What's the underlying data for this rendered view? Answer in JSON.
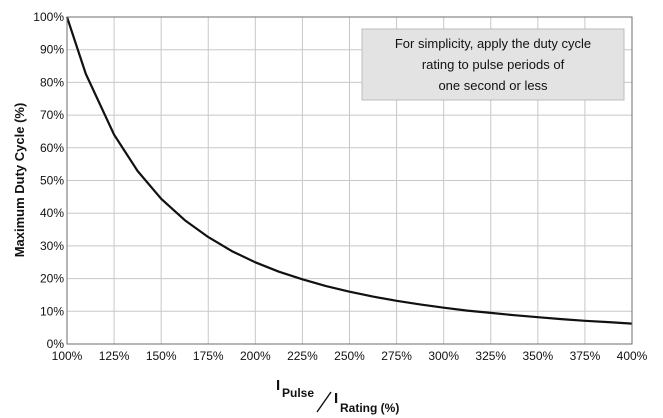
{
  "chart_data": {
    "type": "line",
    "x_tick_labels": [
      "100%",
      "125%",
      "150%",
      "175%",
      "200%",
      "225%",
      "250%",
      "275%",
      "300%",
      "325%",
      "350%",
      "375%",
      "400%"
    ],
    "y_tick_labels": [
      "0%",
      "10%",
      "20%",
      "30%",
      "40%",
      "50%",
      "60%",
      "70%",
      "80%",
      "90%",
      "100%"
    ],
    "xlim": [
      100,
      400
    ],
    "ylim": [
      0,
      100
    ],
    "grid": true,
    "ylabel": "Maximum Duty Cycle (%)",
    "xlabel": {
      "numerator": "I",
      "numerator_sub": "Pulse",
      "denominator": "I",
      "denominator_sub": "Rating (%)"
    },
    "annotation": {
      "lines": [
        "For simplicity, apply the duty cycle",
        "rating to pulse periods of",
        "one second or less"
      ]
    },
    "series": [
      {
        "line_color": "#111111",
        "x": [
          100,
          110,
          125,
          137.5,
          150,
          162.5,
          175,
          187.5,
          200,
          212.5,
          225,
          237.5,
          250,
          262.5,
          275,
          287.5,
          300,
          312.5,
          325,
          337.5,
          350,
          362.5,
          375,
          387.5,
          400
        ],
        "y": [
          100,
          82.6,
          64,
          52.9,
          44.4,
          37.9,
          32.7,
          28.4,
          25,
          22.1,
          19.8,
          17.7,
          16,
          14.5,
          13.2,
          12.1,
          11.1,
          10.2,
          9.5,
          8.8,
          8.2,
          7.6,
          7.1,
          6.7,
          6.25
        ]
      }
    ]
  }
}
